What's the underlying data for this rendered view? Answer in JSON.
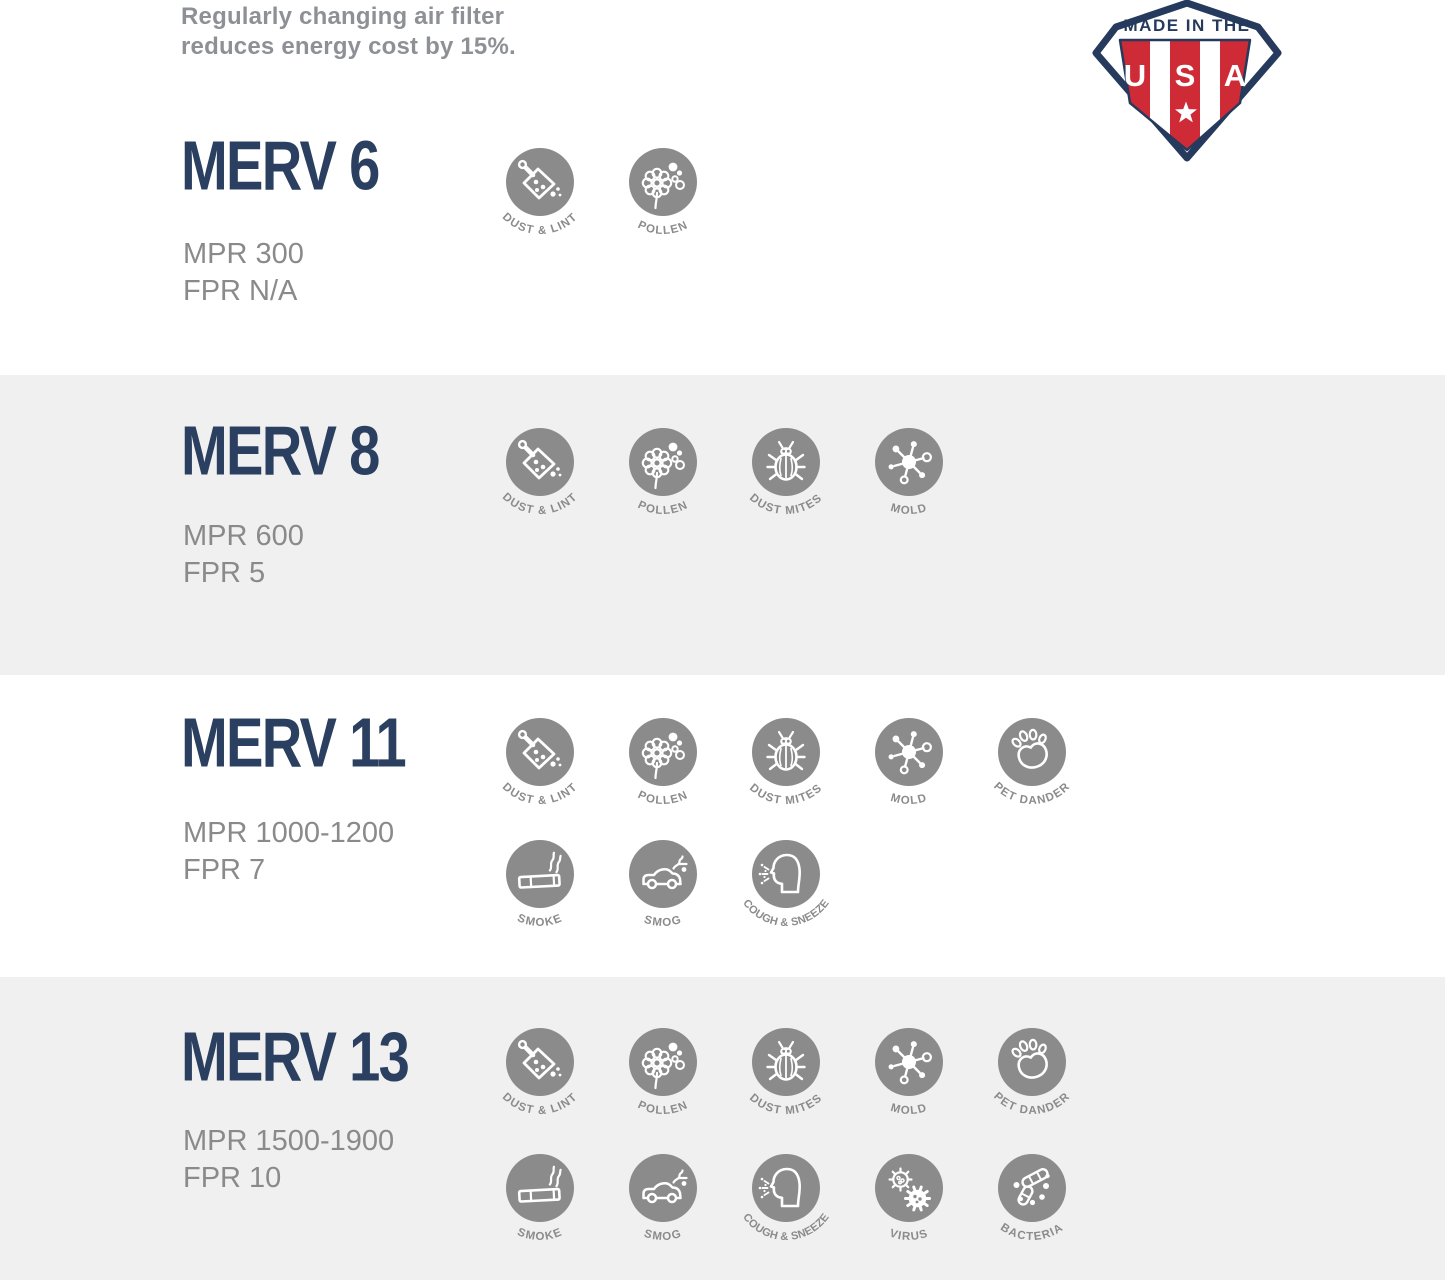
{
  "note": {
    "line1": "Regularly changing air filter",
    "line2": "reduces energy cost by 15%."
  },
  "badge": {
    "banner": "MADE IN THE",
    "letters": [
      "U",
      "S",
      "A"
    ]
  },
  "colors": {
    "title_navy": "#2b4060",
    "badge_navy": "#253a5c",
    "badge_red": "#ce2b37",
    "band_gray": "#f0f0f0",
    "icon_gray": "#8b8b8b",
    "stats_gray": "#8a8a8a",
    "text_gray": "#8d9196"
  },
  "sections": [
    {
      "id": "merv-6",
      "title": "MERV 6",
      "mpr": "MPR 300",
      "fpr": "FPR N/A",
      "band": false,
      "icon_rows": [
        [
          {
            "id": "dust-lint",
            "label": "DUST & LINT"
          },
          {
            "id": "pollen",
            "label": "POLLEN"
          }
        ]
      ]
    },
    {
      "id": "merv-8",
      "title": "MERV 8",
      "mpr": "MPR 600",
      "fpr": "FPR 5",
      "band": true,
      "icon_rows": [
        [
          {
            "id": "dust-lint",
            "label": "DUST & LINT"
          },
          {
            "id": "pollen",
            "label": "POLLEN"
          },
          {
            "id": "dust-mites",
            "label": "DUST MITES"
          },
          {
            "id": "mold",
            "label": "MOLD"
          }
        ]
      ]
    },
    {
      "id": "merv-11",
      "title": "MERV 11",
      "mpr": "MPR 1000-1200",
      "fpr": "FPR 7",
      "band": false,
      "icon_rows": [
        [
          {
            "id": "dust-lint",
            "label": "DUST & LINT"
          },
          {
            "id": "pollen",
            "label": "POLLEN"
          },
          {
            "id": "dust-mites",
            "label": "DUST MITES"
          },
          {
            "id": "mold",
            "label": "MOLD"
          },
          {
            "id": "pet-dander",
            "label": "PET DANDER"
          }
        ],
        [
          {
            "id": "smoke",
            "label": "SMOKE"
          },
          {
            "id": "smog",
            "label": "SMOG"
          },
          {
            "id": "cough-sneeze",
            "label": "COUGH & SNEEZE"
          }
        ]
      ]
    },
    {
      "id": "merv-13",
      "title": "MERV 13",
      "mpr": "MPR 1500-1900",
      "fpr": "FPR 10",
      "band": true,
      "icon_rows": [
        [
          {
            "id": "dust-lint",
            "label": "DUST & LINT"
          },
          {
            "id": "pollen",
            "label": "POLLEN"
          },
          {
            "id": "dust-mites",
            "label": "DUST MITES"
          },
          {
            "id": "mold",
            "label": "MOLD"
          },
          {
            "id": "pet-dander",
            "label": "PET DANDER"
          }
        ],
        [
          {
            "id": "smoke",
            "label": "SMOKE"
          },
          {
            "id": "smog",
            "label": "SMOG"
          },
          {
            "id": "cough-sneeze",
            "label": "COUGH & SNEEZE"
          },
          {
            "id": "virus",
            "label": "VIRUS"
          },
          {
            "id": "bacteria",
            "label": "BACTERIA"
          }
        ]
      ]
    }
  ]
}
